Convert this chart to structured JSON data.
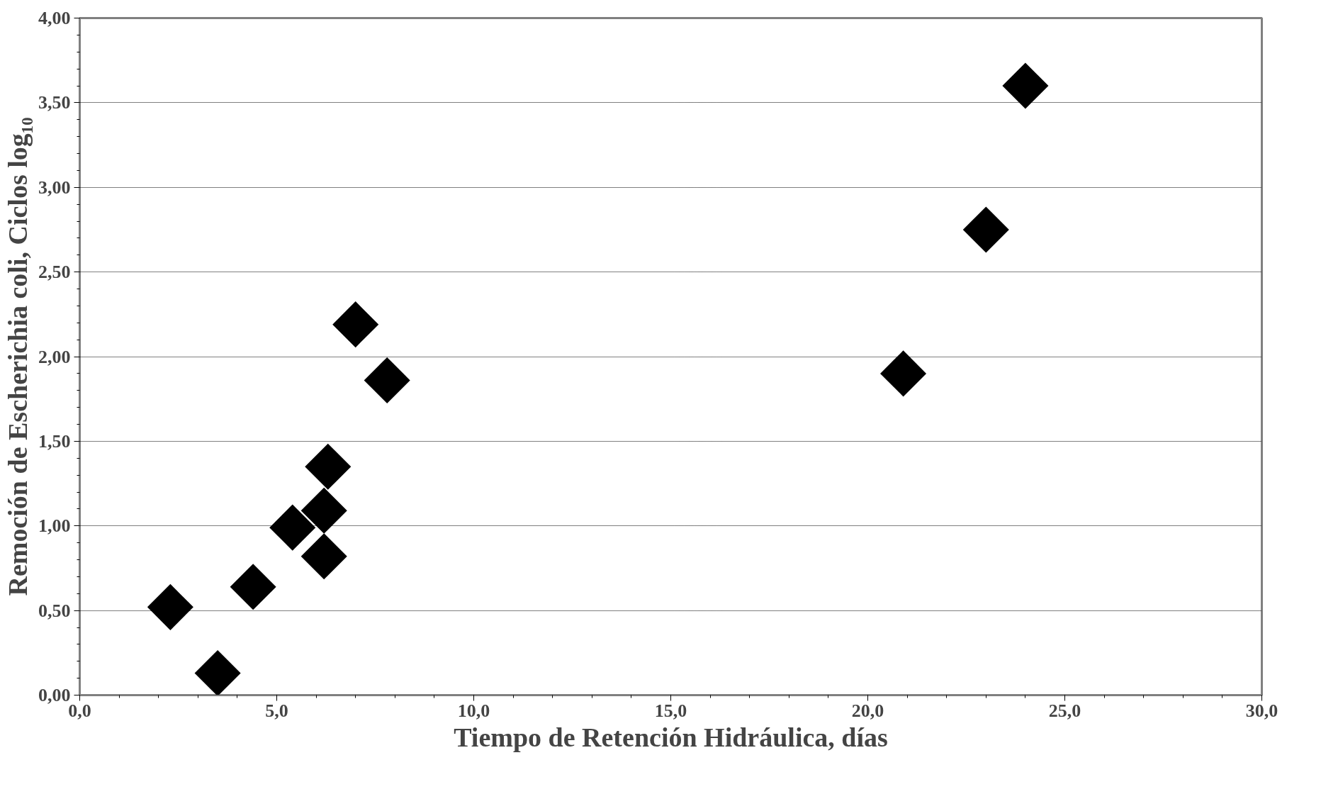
{
  "chart_data": {
    "type": "scatter",
    "xlabel": "Tiempo de Retención Hidráulica, días",
    "ylabel": "Remoción de Escherichia coli, Ciclos log₁₀",
    "x": [
      2.3,
      3.5,
      4.4,
      5.4,
      6.2,
      6.2,
      6.3,
      7.0,
      7.8,
      20.9,
      23.0,
      24.0
    ],
    "series": [
      {
        "color": "#000000",
        "values": [
          0.52,
          0.13,
          0.64,
          0.99,
          1.09,
          0.82,
          1.35,
          2.19,
          1.86,
          1.9,
          2.75,
          3.6
        ]
      }
    ],
    "marker": "diamond",
    "grid": "y",
    "xlim": [
      0,
      30
    ],
    "ylim": [
      0,
      4
    ],
    "xticks": [
      {
        "value": 0,
        "label": "0,0"
      },
      {
        "value": 5,
        "label": "5,0"
      },
      {
        "value": 10,
        "label": "10,0"
      },
      {
        "value": 15,
        "label": "15,0"
      },
      {
        "value": 20,
        "label": "20,0"
      },
      {
        "value": 25,
        "label": "25,0"
      },
      {
        "value": 30,
        "label": "30,0"
      }
    ],
    "yticks": [
      {
        "value": 0,
        "label": "0,00"
      },
      {
        "value": 0.5,
        "label": "0,50"
      },
      {
        "value": 1,
        "label": "1,00"
      },
      {
        "value": 1.5,
        "label": "1,50"
      },
      {
        "value": 2,
        "label": "2,00"
      },
      {
        "value": 2.5,
        "label": "2,50"
      },
      {
        "value": 3,
        "label": "3,00"
      },
      {
        "value": 3.5,
        "label": "3,50"
      },
      {
        "value": 4,
        "label": "4,00"
      }
    ]
  }
}
